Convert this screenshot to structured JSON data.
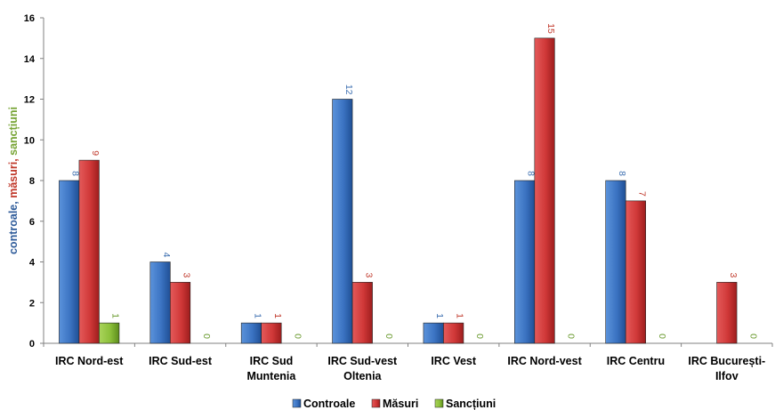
{
  "chart_data": {
    "type": "bar",
    "categories": [
      [
        "IRC Nord-est"
      ],
      [
        "IRC Sud-est"
      ],
      [
        "IRC Sud",
        "Muntenia"
      ],
      [
        "IRC Sud-vest",
        "Oltenia"
      ],
      [
        "IRC Vest"
      ],
      [
        "IRC Nord-vest"
      ],
      [
        "IRC Centru"
      ],
      [
        "IRC București-",
        "Ilfov"
      ]
    ],
    "series": [
      {
        "name": "Controale",
        "color": "#3d77c5",
        "values": [
          8,
          4,
          1,
          12,
          1,
          8,
          8,
          null
        ]
      },
      {
        "name": "Măsuri",
        "color": "#d23b3b",
        "values": [
          9,
          3,
          1,
          3,
          1,
          15,
          7,
          3
        ]
      },
      {
        "name": "Sancțiuni",
        "color": "#8fc23d",
        "values": [
          1,
          0,
          0,
          0,
          0,
          0,
          0,
          0
        ]
      }
    ],
    "ylabel_parts": [
      {
        "text": "controale, ",
        "color": "#2e5b9a"
      },
      {
        "text": "măsuri, ",
        "color": "#c0392b"
      },
      {
        "text": "sancțiuni",
        "color": "#77a435"
      }
    ],
    "ylim": [
      0,
      16
    ],
    "yticks": [
      0,
      2,
      4,
      6,
      8,
      10,
      12,
      14,
      16
    ],
    "label_colors": [
      "#3d6fb0",
      "#c0392b",
      "#6a9a2e"
    ],
    "legend_position": "bottom"
  }
}
